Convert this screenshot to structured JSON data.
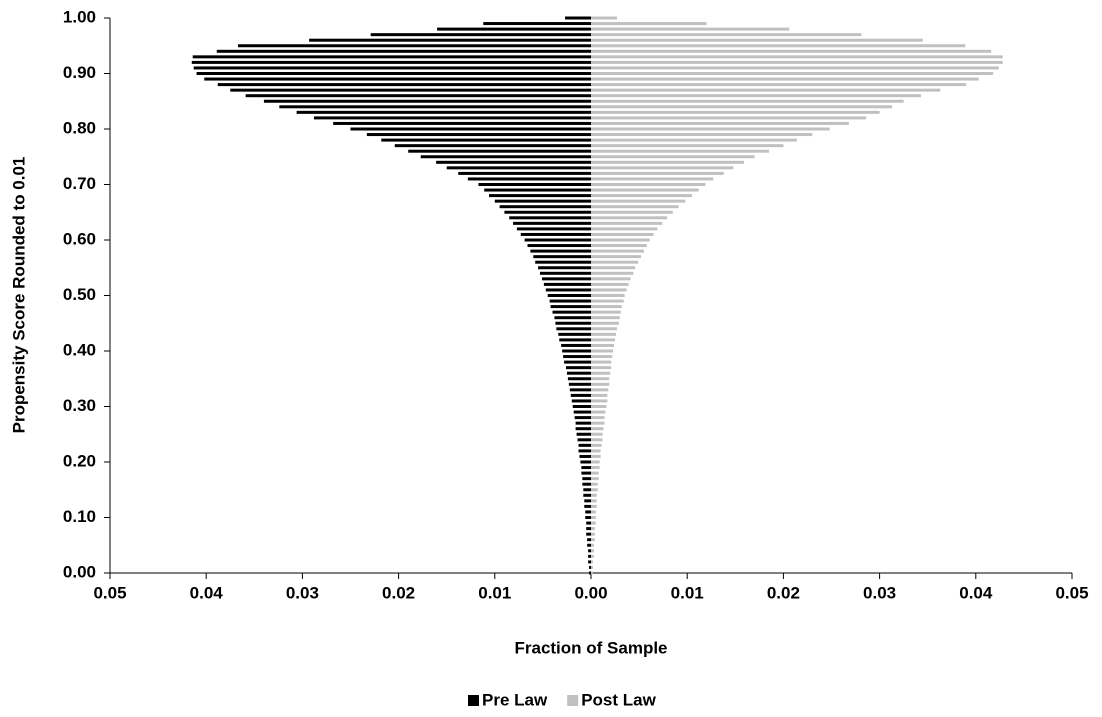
{
  "chart_data": {
    "type": "pyramid",
    "x_label": "Fraction of Sample",
    "y_label": "Propensity Score Rounded to 0.01",
    "y": [
      0,
      0.01,
      0.02,
      0.03,
      0.04,
      0.05,
      0.06,
      0.07,
      0.08,
      0.09,
      0.1,
      0.11,
      0.12,
      0.13,
      0.14,
      0.15,
      0.16,
      0.17,
      0.18,
      0.19,
      0.2,
      0.21,
      0.22,
      0.23,
      0.24,
      0.25,
      0.26,
      0.27,
      0.28,
      0.29,
      0.3,
      0.31,
      0.32,
      0.33,
      0.34,
      0.35,
      0.36,
      0.37,
      0.38,
      0.39,
      0.4,
      0.41,
      0.42,
      0.43,
      0.44,
      0.45,
      0.46,
      0.47,
      0.48,
      0.49,
      0.5,
      0.51,
      0.52,
      0.53,
      0.54,
      0.55,
      0.56,
      0.57,
      0.58,
      0.59,
      0.6,
      0.61,
      0.62,
      0.63,
      0.64,
      0.65,
      0.66,
      0.67,
      0.68,
      0.69,
      0.7,
      0.71,
      0.72,
      0.73,
      0.74,
      0.75,
      0.76,
      0.77,
      0.78,
      0.79,
      0.8,
      0.81,
      0.82,
      0.83,
      0.84,
      0.85,
      0.86,
      0.87,
      0.88,
      0.89,
      0.9,
      0.91,
      0.92,
      0.93,
      0.94,
      0.95,
      0.96,
      0.97,
      0.98,
      0.99,
      1
    ],
    "series": [
      {
        "name": "Pre Law",
        "color": "#000000",
        "values": [
          -0.0002,
          -0.0002,
          -0.0003,
          -0.0003,
          -0.0003,
          -0.0004,
          -0.0004,
          -0.0005,
          -0.0005,
          -0.0005,
          -0.0006,
          -0.0006,
          -0.0007,
          -0.0007,
          -0.0008,
          -0.0008,
          -0.0009,
          -0.0009,
          -0.001,
          -0.001,
          -0.0011,
          -0.0012,
          -0.0013,
          -0.0013,
          -0.0014,
          -0.0015,
          -0.0016,
          -0.0016,
          -0.0017,
          -0.0018,
          -0.0019,
          -0.002,
          -0.0021,
          -0.0022,
          -0.0023,
          -0.0024,
          -0.0025,
          -0.0026,
          -0.0028,
          -0.0029,
          -0.003,
          -0.0031,
          -0.0033,
          -0.0034,
          -0.0036,
          -0.0037,
          -0.0038,
          -0.004,
          -0.0042,
          -0.0043,
          -0.0045,
          -0.0047,
          -0.0049,
          -0.0051,
          -0.0053,
          -0.0055,
          -0.0058,
          -0.006,
          -0.0063,
          -0.0066,
          -0.0069,
          -0.0073,
          -0.0077,
          -0.0081,
          -0.0085,
          -0.009,
          -0.0095,
          -0.01,
          -0.0106,
          -0.0111,
          -0.0117,
          -0.0128,
          -0.0138,
          -0.015,
          -0.0161,
          -0.0177,
          -0.019,
          -0.0204,
          -0.0218,
          -0.0233,
          -0.025,
          -0.0268,
          -0.0288,
          -0.0306,
          -0.0324,
          -0.034,
          -0.0359,
          -0.0375,
          -0.0388,
          -0.0402,
          -0.041,
          -0.0413,
          -0.0415,
          -0.0414,
          -0.0389,
          -0.0367,
          -0.0293,
          -0.0229,
          -0.016,
          -0.0112,
          -0.0027
        ]
      },
      {
        "name": "Post Law",
        "color": "#c0c0c0",
        "values": [
          0.0002,
          0.0002,
          0.0002,
          0.0003,
          0.0003,
          0.0003,
          0.0004,
          0.0004,
          0.0004,
          0.0005,
          0.0005,
          0.0005,
          0.0006,
          0.0006,
          0.0006,
          0.0007,
          0.0007,
          0.0008,
          0.0008,
          0.0009,
          0.0009,
          0.001,
          0.001,
          0.0011,
          0.0012,
          0.0012,
          0.0013,
          0.0014,
          0.0014,
          0.0015,
          0.0016,
          0.0017,
          0.0017,
          0.0018,
          0.0019,
          0.0019,
          0.002,
          0.0021,
          0.0021,
          0.0022,
          0.0023,
          0.0024,
          0.0025,
          0.0026,
          0.0027,
          0.0029,
          0.003,
          0.0031,
          0.0032,
          0.0034,
          0.0035,
          0.0037,
          0.0039,
          0.0041,
          0.0044,
          0.0046,
          0.0049,
          0.0052,
          0.0055,
          0.0058,
          0.0061,
          0.0065,
          0.0069,
          0.0074,
          0.0079,
          0.0085,
          0.0091,
          0.0098,
          0.0105,
          0.0112,
          0.0119,
          0.0127,
          0.0138,
          0.0148,
          0.0159,
          0.017,
          0.0185,
          0.02,
          0.0214,
          0.023,
          0.0248,
          0.0268,
          0.0286,
          0.03,
          0.0313,
          0.0325,
          0.0343,
          0.0363,
          0.039,
          0.0403,
          0.0418,
          0.0424,
          0.0428,
          0.0428,
          0.0416,
          0.0389,
          0.0345,
          0.0281,
          0.0206,
          0.012,
          0.0027
        ]
      }
    ],
    "xlim": [
      -0.05,
      0.05
    ],
    "xticks": [
      {
        "value": -0.05,
        "label": "0.05"
      },
      {
        "value": -0.04,
        "label": "0.04"
      },
      {
        "value": -0.03,
        "label": "0.03"
      },
      {
        "value": -0.02,
        "label": "0.02"
      },
      {
        "value": -0.01,
        "label": "0.01"
      },
      {
        "value": 0,
        "label": "0.00"
      },
      0.01,
      0.02,
      0.03,
      0.04,
      0.05
    ],
    "ylim": [
      0,
      1
    ],
    "yticks": [
      {
        "value": 0,
        "label": "0.00"
      },
      {
        "value": 0.1,
        "label": "0.10"
      },
      {
        "value": 0.2,
        "label": "0.20"
      },
      {
        "value": 0.3,
        "label": "0.30"
      },
      {
        "value": 0.4,
        "label": "0.40"
      },
      {
        "value": 0.5,
        "label": "0.50"
      },
      {
        "value": 0.6,
        "label": "0.60"
      },
      {
        "value": 0.7,
        "label": "0.70"
      },
      {
        "value": 0.8,
        "label": "0.80"
      },
      {
        "value": 0.9,
        "label": "0.90"
      },
      {
        "value": 1,
        "label": "1.00"
      }
    ],
    "legend": "bottom"
  }
}
